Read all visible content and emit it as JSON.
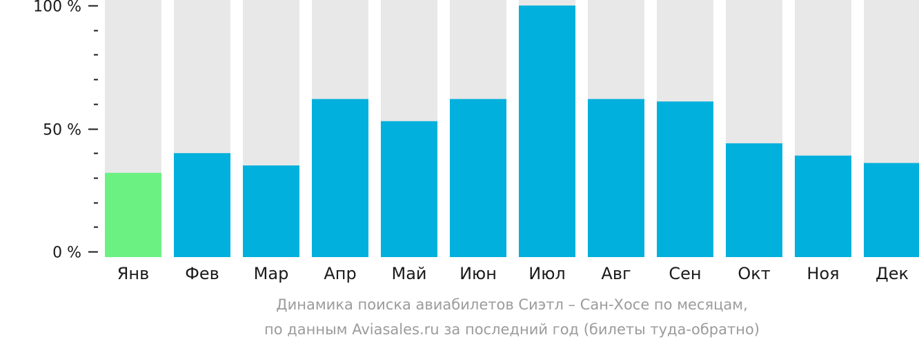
{
  "chart_data": {
    "type": "bar",
    "categories": [
      "Янв",
      "Фев",
      "Мар",
      "Апр",
      "Май",
      "Июн",
      "Июл",
      "Авг",
      "Сен",
      "Окт",
      "Ноя",
      "Дек"
    ],
    "values": [
      32,
      40,
      35,
      62,
      53,
      62,
      100,
      62,
      61,
      44,
      39,
      36
    ],
    "ylim": [
      0,
      100
    ],
    "y_ticks": [
      {
        "value": 100,
        "label": "100 %"
      },
      {
        "value": 50,
        "label": "50 %"
      },
      {
        "value": 0,
        "label": "0 %"
      }
    ],
    "minor_tick_step": 10,
    "highlight_index": 0,
    "colors": {
      "bar": "#01b0dc",
      "highlight": "#6bf182",
      "background_bar": "#e8e8e8",
      "axis": "#1a1a1a"
    },
    "caption": [
      "Динамика поиска авиабилетов Сиэтл – Сан-Хосе по месяцам,",
      "по данным Aviasales.ru за последний год (билеты туда-обратно)"
    ]
  }
}
